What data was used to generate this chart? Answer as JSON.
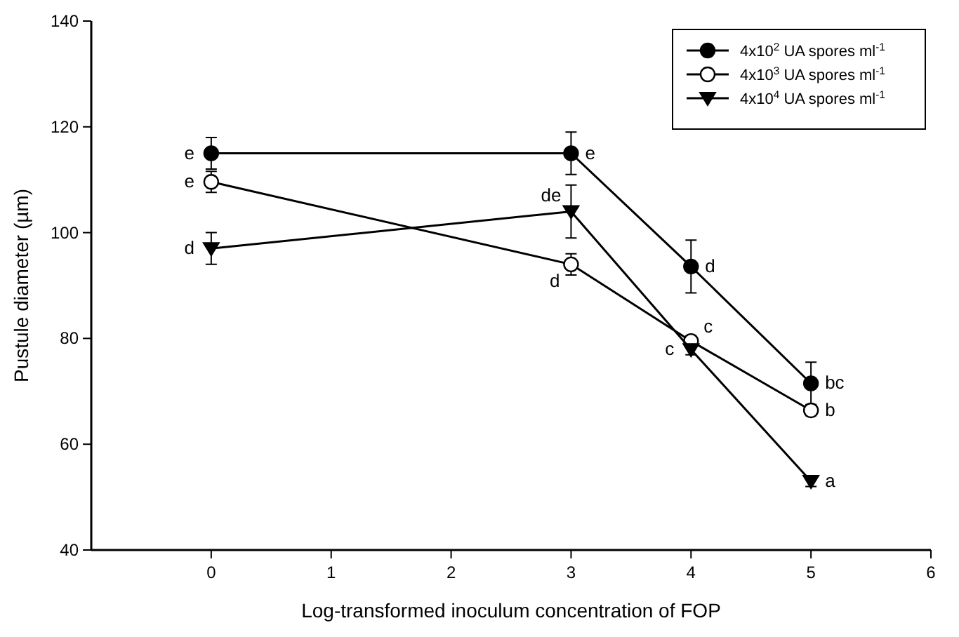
{
  "chart_data": {
    "type": "line",
    "xlabel": "Log-transformed inoculum concentration of FOP",
    "ylabel": "Pustule diameter (µm)",
    "x": [
      0,
      3,
      4,
      5
    ],
    "xlim": [
      -1,
      6
    ],
    "xticks": [
      0,
      1,
      2,
      3,
      4,
      5,
      6
    ],
    "ylim": [
      40,
      140
    ],
    "yticks": [
      40,
      60,
      80,
      100,
      120,
      140
    ],
    "grid": false,
    "legend": "top right",
    "line_style": "solid",
    "series": [
      {
        "name": "4x10$^{2}$ UA spores ml$^{-1}$",
        "color": "#000000",
        "marker": "circle",
        "values": [
          115,
          115,
          93.6,
          71.5
        ],
        "errors": [
          3,
          4,
          5,
          4
        ]
      },
      {
        "name": "4x10$^{3}$ UA spores ml$^{-1}$",
        "color": "#000000",
        "marker": "circle",
        "values": [
          109.6,
          94,
          79.5,
          66.4
        ],
        "errors": [
          2,
          2,
          1,
          1
        ]
      },
      {
        "name": "4x10$^{4}$ UA spores ml$^{-1}$",
        "color": "#000000",
        "marker": "triangle",
        "values": [
          97,
          104,
          77.9,
          53
        ],
        "errors": [
          3,
          5,
          1,
          1
        ]
      }
    ],
    "annotations": [
      {
        "text": "e",
        "x": 0,
        "y": 115
      },
      {
        "text": "e",
        "x": 0,
        "y": 109.6
      },
      {
        "text": "d",
        "x": 0,
        "y": 97
      },
      {
        "text": "e",
        "x": 3,
        "y": 115
      },
      {
        "text": "d",
        "x": 3,
        "y": 94
      },
      {
        "text": "de",
        "x": 3,
        "y": 104
      },
      {
        "text": "d",
        "x": 4,
        "y": 93.6
      },
      {
        "text": "c",
        "x": 4,
        "y": 79.5
      },
      {
        "text": "c",
        "x": 4,
        "y": 77.9
      },
      {
        "text": "bc",
        "x": 5,
        "y": 71.5
      },
      {
        "text": "b",
        "x": 5,
        "y": 66.4
      },
      {
        "text": "a",
        "x": 5,
        "y": 53
      }
    ]
  }
}
